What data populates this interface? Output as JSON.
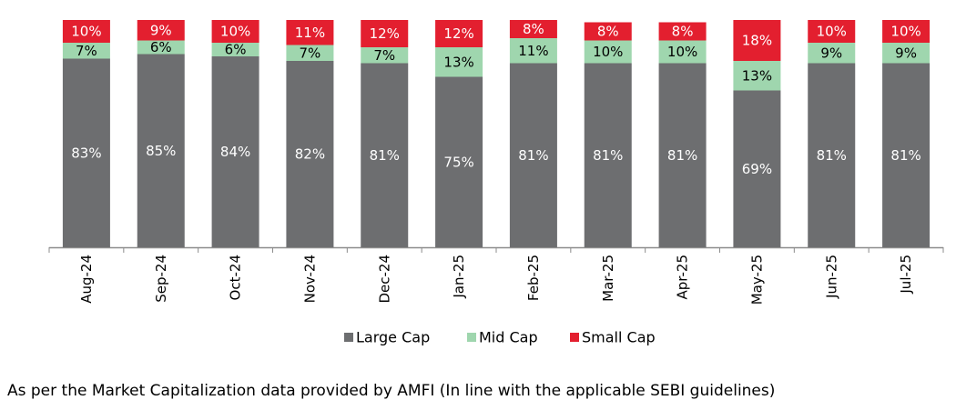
{
  "chart_data": {
    "type": "bar",
    "stacked": true,
    "percent_stacked": true,
    "categories": [
      "Aug-24",
      "Sep-24",
      "Oct-24",
      "Nov-24",
      "Dec-24",
      "Jan-25",
      "Feb-25",
      "Mar-25",
      "Apr-25",
      "May-25",
      "Jun-25",
      "Jul-25"
    ],
    "series": [
      {
        "name": "Large Cap",
        "color": "#6d6e70",
        "label_color": "#ffffff",
        "values": [
          83,
          85,
          84,
          82,
          81,
          75,
          81,
          81,
          81,
          69,
          81,
          81
        ]
      },
      {
        "name": "Mid Cap",
        "color": "#9fd6ae",
        "label_color": "#000000",
        "values": [
          7,
          6,
          6,
          7,
          7,
          13,
          11,
          10,
          10,
          13,
          9,
          9
        ]
      },
      {
        "name": "Small Cap",
        "color": "#e31f2f",
        "label_color": "#ffffff",
        "values": [
          10,
          9,
          10,
          11,
          12,
          12,
          8,
          8,
          8,
          18,
          10,
          10
        ]
      }
    ],
    "value_suffix": "%",
    "ylim": [
      0,
      100
    ],
    "legend_position": "bottom",
    "grid": false
  },
  "footnote": "As per the Market Capitalization data provided by AMFI (In line with the applicable SEBI guidelines)"
}
